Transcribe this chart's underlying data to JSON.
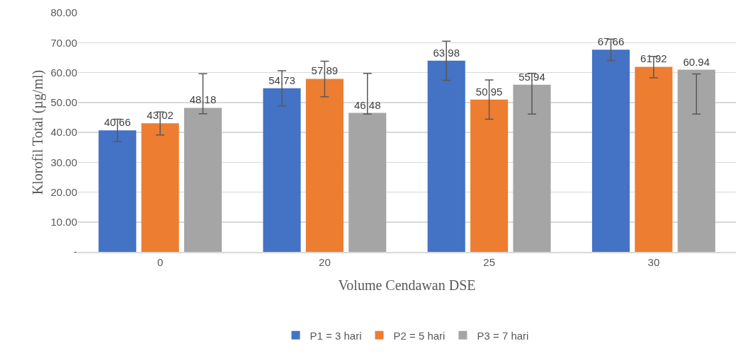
{
  "chart_data": {
    "type": "bar",
    "xlabel": "Volume Cendawan DSE",
    "ylabel": "Klorofil Total (µg/ml)",
    "categories": [
      "0",
      "20",
      "25",
      "30"
    ],
    "series": [
      {
        "name": "P1 = 3 hari",
        "color": "#4472c4",
        "values": [
          40.66,
          54.73,
          63.98,
          67.66
        ],
        "errors": [
          [
            36.9,
            44.4
          ],
          [
            48.8,
            60.6
          ],
          [
            57.4,
            70.5
          ],
          [
            64.0,
            71.2
          ]
        ]
      },
      {
        "name": "P2 = 5 hari",
        "color": "#ed7d31",
        "values": [
          43.02,
          57.89,
          50.95,
          61.92
        ],
        "errors": [
          [
            39.1,
            46.8
          ],
          [
            51.9,
            63.8
          ],
          [
            44.4,
            57.5
          ],
          [
            58.2,
            65.4
          ]
        ]
      },
      {
        "name": "P3 = 7 hari",
        "color": "#a5a5a5",
        "values": [
          48.18,
          46.48,
          55.94,
          60.94
        ],
        "errors": [
          [
            46.2,
            59.6
          ],
          [
            46.1,
            59.7
          ],
          [
            46.1,
            59.7
          ],
          [
            46.1,
            59.5
          ]
        ]
      }
    ],
    "ylim": [
      0,
      80
    ],
    "yticks": [
      {
        "value": 0,
        "label": "-"
      },
      {
        "value": 10,
        "label": "10.00"
      },
      {
        "value": 20,
        "label": "20.00"
      },
      {
        "value": 30,
        "label": "30.00"
      },
      {
        "value": 40,
        "label": "40.00"
      },
      {
        "value": 50,
        "label": "50.00"
      },
      {
        "value": 60,
        "label": "60.00"
      },
      {
        "value": 70,
        "label": "70.00"
      },
      {
        "value": 80,
        "label": "80.00"
      }
    ],
    "grid": "y",
    "legend": "bottom",
    "data_labels": true
  }
}
